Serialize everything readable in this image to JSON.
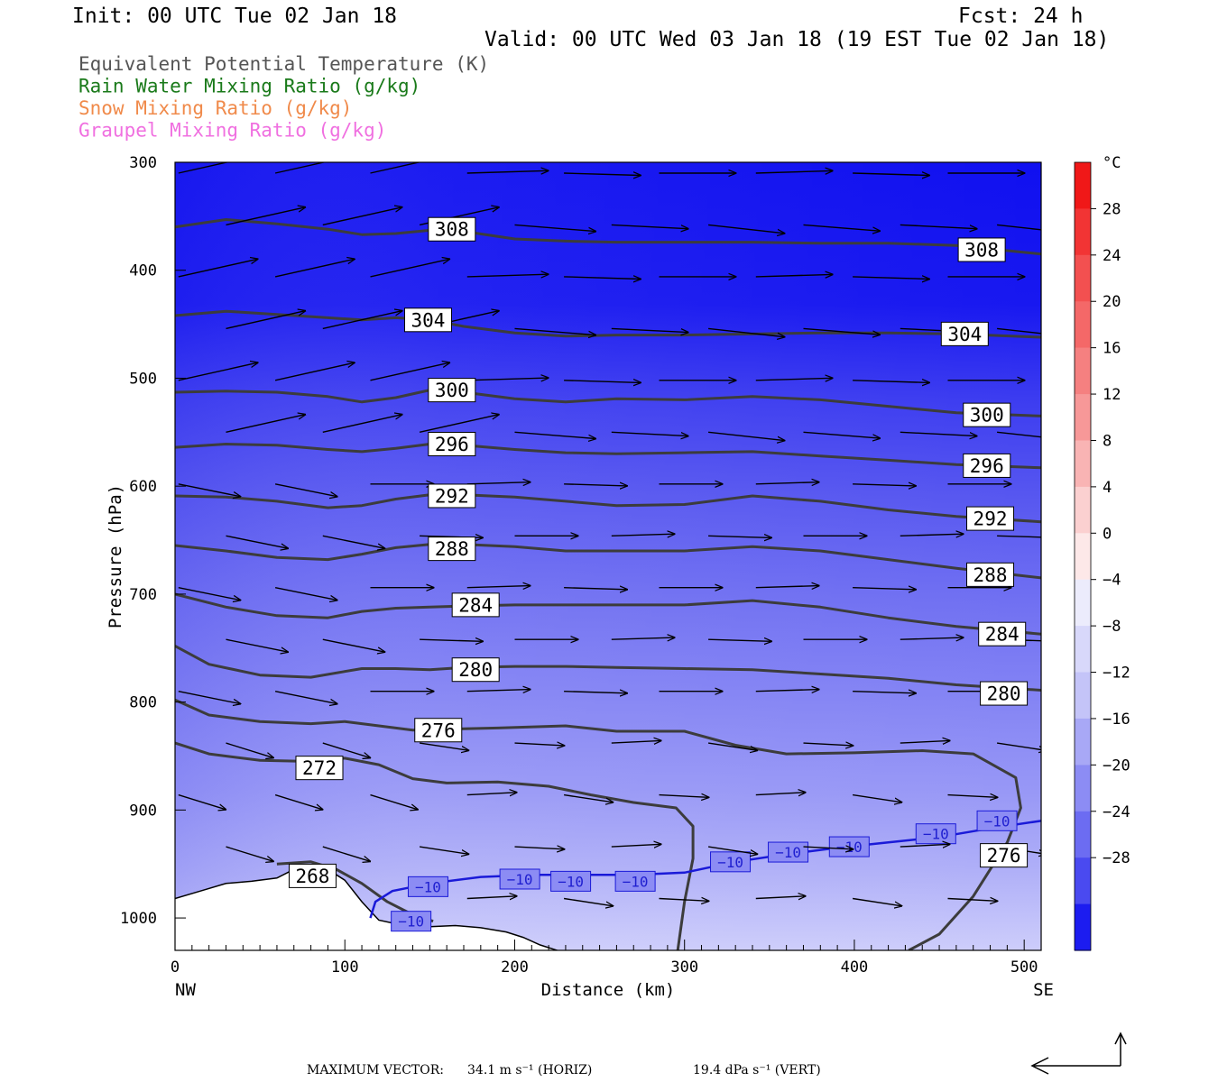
{
  "header": {
    "init": "Init: 00 UTC Tue 02 Jan 18",
    "fcst": "Fcst:   24 h",
    "valid": "Valid: 00 UTC Wed 03 Jan 18 (19 EST Tue 02 Jan 18)"
  },
  "legend": [
    {
      "label": "Equivalent Potential Temperature (K)",
      "color": "#555555"
    },
    {
      "label": "Rain Water Mixing Ratio (g/kg)",
      "color": "#1a7a1a"
    },
    {
      "label": "Snow Mixing Ratio (g/kg)",
      "color": "#f08a4a"
    },
    {
      "label": "Graupel Mixing Ratio (g/kg)",
      "color": "#f070e0"
    }
  ],
  "colorbar": {
    "unit": "°C",
    "labels": [
      "28",
      "24",
      "20",
      "16",
      "12",
      "8",
      "4",
      "0",
      "−4",
      "−8",
      "−12",
      "−16",
      "−20",
      "−24",
      "−28"
    ]
  },
  "footer": {
    "label": "MAXIMUM VECTOR:",
    "horiz": "34.1 m s⁻¹ (HORIZ)",
    "vert": "19.4 dPa s⁻¹ (VERT)"
  },
  "chart_data": {
    "type": "cross-section contour",
    "xlabel": "Distance (km)",
    "ylabel": "Pressure (hPa)",
    "xlim": [
      0,
      510
    ],
    "ylim": [
      1030,
      300
    ],
    "x_ticks": [
      0,
      100,
      200,
      300,
      400,
      500
    ],
    "y_ticks": [
      300,
      400,
      500,
      600,
      700,
      800,
      900,
      1000
    ],
    "x_end_labels": {
      "left": "NW",
      "right": "SE"
    },
    "fill_temperature_levels_C": [
      -28,
      -24,
      -20,
      -16,
      -12,
      -8,
      -4,
      0,
      4,
      8,
      12,
      16,
      20,
      24,
      28
    ],
    "theta_e_contours": [
      {
        "level": 308,
        "points": [
          [
            0,
            360
          ],
          [
            30,
            353
          ],
          [
            60,
            357
          ],
          [
            90,
            362
          ],
          [
            110,
            367
          ],
          [
            130,
            366
          ],
          [
            150,
            363
          ],
          [
            170,
            364
          ],
          [
            200,
            371
          ],
          [
            230,
            373
          ],
          [
            260,
            374
          ],
          [
            300,
            374
          ],
          [
            340,
            374
          ],
          [
            380,
            375
          ],
          [
            420,
            375
          ],
          [
            460,
            377
          ],
          [
            510,
            385
          ]
        ],
        "labels": [
          [
            163,
            362
          ],
          [
            475,
            381
          ]
        ]
      },
      {
        "level": 304,
        "points": [
          [
            0,
            442
          ],
          [
            30,
            438
          ],
          [
            60,
            441
          ],
          [
            90,
            444
          ],
          [
            110,
            446
          ],
          [
            130,
            444
          ],
          [
            150,
            446
          ],
          [
            170,
            452
          ],
          [
            200,
            458
          ],
          [
            230,
            461
          ],
          [
            260,
            460
          ],
          [
            300,
            460
          ],
          [
            340,
            459
          ],
          [
            380,
            458
          ],
          [
            420,
            458
          ],
          [
            460,
            459
          ],
          [
            510,
            462
          ]
        ],
        "labels": [
          [
            149,
            446
          ],
          [
            465,
            459
          ]
        ]
      },
      {
        "level": 300,
        "points": [
          [
            0,
            513
          ],
          [
            30,
            512
          ],
          [
            60,
            513
          ],
          [
            90,
            517
          ],
          [
            110,
            522
          ],
          [
            130,
            518
          ],
          [
            150,
            511
          ],
          [
            170,
            513
          ],
          [
            200,
            519
          ],
          [
            230,
            522
          ],
          [
            260,
            519
          ],
          [
            300,
            520
          ],
          [
            340,
            517
          ],
          [
            380,
            520
          ],
          [
            420,
            526
          ],
          [
            460,
            532
          ],
          [
            510,
            535
          ]
        ],
        "labels": [
          [
            163,
            511
          ],
          [
            478,
            534
          ]
        ]
      },
      {
        "level": 296,
        "points": [
          [
            0,
            564
          ],
          [
            30,
            561
          ],
          [
            60,
            562
          ],
          [
            90,
            566
          ],
          [
            110,
            568
          ],
          [
            130,
            565
          ],
          [
            150,
            561
          ],
          [
            170,
            562
          ],
          [
            200,
            566
          ],
          [
            230,
            569
          ],
          [
            260,
            570
          ],
          [
            300,
            569
          ],
          [
            340,
            568
          ],
          [
            380,
            572
          ],
          [
            420,
            576
          ],
          [
            460,
            580
          ],
          [
            510,
            583
          ]
        ],
        "labels": [
          [
            163,
            561
          ],
          [
            478,
            581
          ]
        ]
      },
      {
        "level": 292,
        "points": [
          [
            0,
            609
          ],
          [
            30,
            610
          ],
          [
            60,
            614
          ],
          [
            90,
            620
          ],
          [
            110,
            618
          ],
          [
            130,
            612
          ],
          [
            150,
            608
          ],
          [
            170,
            608
          ],
          [
            200,
            610
          ],
          [
            230,
            614
          ],
          [
            260,
            618
          ],
          [
            300,
            617
          ],
          [
            340,
            609
          ],
          [
            380,
            614
          ],
          [
            420,
            622
          ],
          [
            460,
            628
          ],
          [
            510,
            633
          ]
        ],
        "labels": [
          [
            163,
            609
          ],
          [
            480,
            630
          ]
        ]
      },
      {
        "level": 288,
        "points": [
          [
            0,
            655
          ],
          [
            30,
            660
          ],
          [
            60,
            666
          ],
          [
            90,
            668
          ],
          [
            110,
            663
          ],
          [
            130,
            657
          ],
          [
            150,
            654
          ],
          [
            170,
            654
          ],
          [
            200,
            656
          ],
          [
            230,
            660
          ],
          [
            260,
            660
          ],
          [
            300,
            660
          ],
          [
            340,
            656
          ],
          [
            380,
            660
          ],
          [
            420,
            668
          ],
          [
            460,
            676
          ],
          [
            510,
            685
          ]
        ],
        "labels": [
          [
            163,
            658
          ],
          [
            480,
            682
          ]
        ]
      },
      {
        "level": 284,
        "points": [
          [
            0,
            700
          ],
          [
            30,
            712
          ],
          [
            60,
            720
          ],
          [
            90,
            722
          ],
          [
            110,
            716
          ],
          [
            130,
            713
          ],
          [
            150,
            712
          ],
          [
            170,
            711
          ],
          [
            200,
            710
          ],
          [
            230,
            710
          ],
          [
            260,
            710
          ],
          [
            300,
            710
          ],
          [
            340,
            706
          ],
          [
            380,
            712
          ],
          [
            420,
            722
          ],
          [
            460,
            730
          ],
          [
            510,
            737
          ]
        ],
        "labels": [
          [
            177,
            710
          ],
          [
            487,
            737
          ]
        ]
      },
      {
        "level": 280,
        "points": [
          [
            0,
            748
          ],
          [
            20,
            765
          ],
          [
            50,
            775
          ],
          [
            80,
            777
          ],
          [
            110,
            769
          ],
          [
            130,
            769
          ],
          [
            150,
            770
          ],
          [
            170,
            768
          ],
          [
            200,
            767
          ],
          [
            230,
            767
          ],
          [
            260,
            768
          ],
          [
            300,
            769
          ],
          [
            340,
            770
          ],
          [
            380,
            774
          ],
          [
            420,
            778
          ],
          [
            460,
            784
          ],
          [
            510,
            789
          ]
        ],
        "labels": [
          [
            177,
            770
          ],
          [
            488,
            792
          ]
        ]
      },
      {
        "level": 276,
        "points": [
          [
            0,
            798
          ],
          [
            20,
            812
          ],
          [
            50,
            818
          ],
          [
            80,
            820
          ],
          [
            100,
            818
          ],
          [
            120,
            822
          ],
          [
            140,
            826
          ],
          [
            160,
            825
          ],
          [
            190,
            824
          ],
          [
            230,
            822
          ],
          [
            260,
            827
          ],
          [
            300,
            827
          ],
          [
            330,
            840
          ],
          [
            360,
            848
          ],
          [
            400,
            847
          ],
          [
            440,
            845
          ],
          [
            470,
            848
          ],
          [
            495,
            870
          ],
          [
            498,
            898
          ],
          [
            490,
            930
          ],
          [
            470,
            980
          ],
          [
            450,
            1015
          ],
          [
            432,
            1030
          ]
        ],
        "labels": [
          [
            155,
            826
          ],
          [
            488,
            942
          ]
        ]
      },
      {
        "level": 272,
        "points": [
          [
            0,
            838
          ],
          [
            20,
            848
          ],
          [
            50,
            854
          ],
          [
            80,
            855
          ],
          [
            100,
            852
          ],
          [
            120,
            858
          ],
          [
            140,
            871
          ],
          [
            160,
            875
          ],
          [
            190,
            874
          ],
          [
            220,
            878
          ],
          [
            245,
            886
          ],
          [
            270,
            893
          ],
          [
            295,
            898
          ],
          [
            305,
            915
          ],
          [
            305,
            945
          ],
          [
            300,
            985
          ],
          [
            296,
            1030
          ]
        ],
        "labels": [
          [
            85,
            861
          ]
        ]
      },
      {
        "level": 268,
        "points": [
          [
            60,
            950
          ],
          [
            80,
            948
          ],
          [
            95,
            955
          ],
          [
            110,
            968
          ],
          [
            125,
            985
          ],
          [
            140,
            997
          ],
          [
            152,
            1003
          ]
        ],
        "labels": [
          [
            81,
            961
          ]
        ]
      }
    ],
    "temperature_minus10_isotherm": {
      "level_C": -10,
      "points": [
        [
          115,
          1000
        ],
        [
          118,
          985
        ],
        [
          128,
          975
        ],
        [
          150,
          968
        ],
        [
          180,
          962
        ],
        [
          210,
          960
        ],
        [
          240,
          960
        ],
        [
          270,
          960
        ],
        [
          300,
          958
        ],
        [
          330,
          948
        ],
        [
          360,
          941
        ],
        [
          390,
          935
        ],
        [
          420,
          930
        ],
        [
          450,
          925
        ],
        [
          480,
          917
        ],
        [
          510,
          910
        ]
      ],
      "labels": [
        [
          139,
          1003
        ],
        [
          149,
          971
        ],
        [
          203,
          964
        ],
        [
          233,
          966
        ],
        [
          271,
          966
        ],
        [
          327,
          948
        ],
        [
          361,
          939
        ],
        [
          397,
          934
        ],
        [
          448,
          922
        ],
        [
          484,
          910
        ]
      ]
    },
    "terrain": [
      [
        0,
        982
      ],
      [
        15,
        975
      ],
      [
        30,
        968
      ],
      [
        45,
        966
      ],
      [
        60,
        963
      ],
      [
        75,
        951
      ],
      [
        85,
        950
      ],
      [
        100,
        965
      ],
      [
        110,
        985
      ],
      [
        120,
        1002
      ],
      [
        135,
        1007
      ],
      [
        150,
        1008
      ],
      [
        165,
        1007
      ],
      [
        180,
        1009
      ],
      [
        195,
        1013
      ],
      [
        205,
        1018
      ],
      [
        215,
        1025
      ],
      [
        225,
        1030
      ]
    ]
  }
}
